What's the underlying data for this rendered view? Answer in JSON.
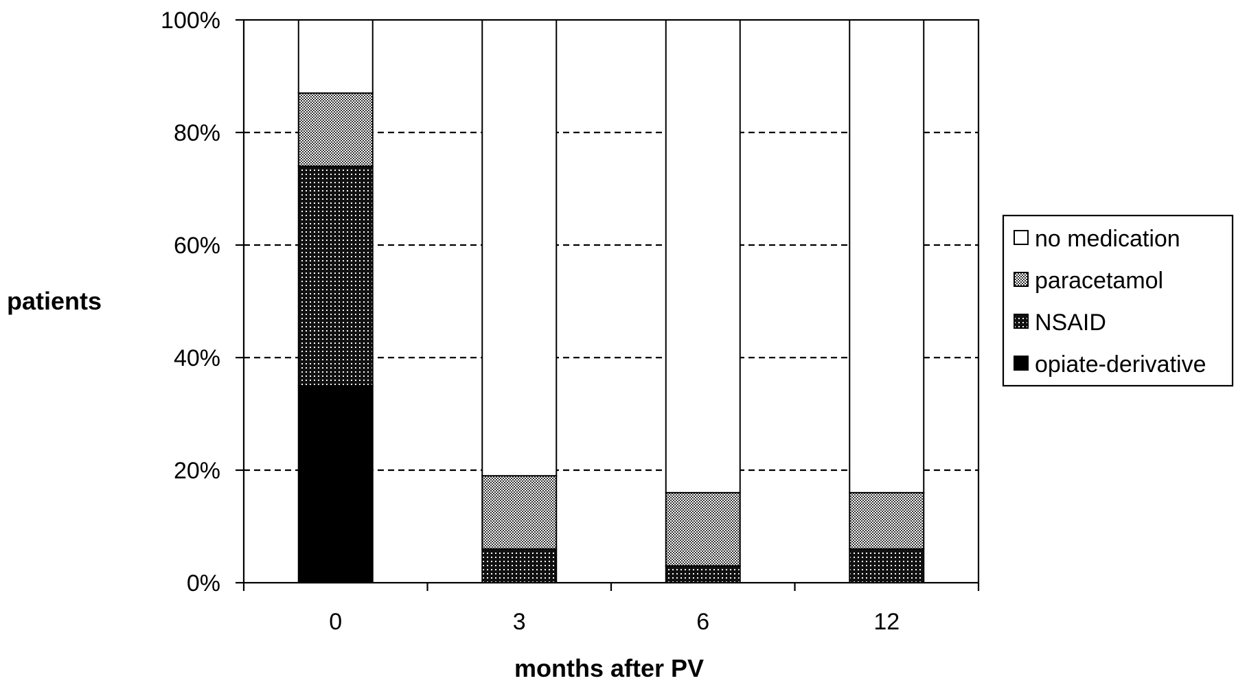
{
  "chart_data": {
    "type": "bar",
    "stacked": true,
    "percent_stacked": true,
    "xlabel": "months after PV",
    "ylabel": "patients",
    "categories": [
      "0",
      "3",
      "6",
      "12"
    ],
    "ylim": [
      0,
      100
    ],
    "y_ticks": [
      "0%",
      "20%",
      "40%",
      "60%",
      "80%",
      "100%"
    ],
    "grid": "horizontal dashed",
    "legend_position": "right",
    "series": [
      {
        "name": "opiate-derivative",
        "values": [
          35,
          0,
          0,
          0
        ],
        "pattern": "solid-black"
      },
      {
        "name": "NSAID",
        "values": [
          39,
          6,
          3,
          6
        ],
        "pattern": "dots-dark"
      },
      {
        "name": "paracetamol",
        "values": [
          13,
          13,
          13,
          10
        ],
        "pattern": "checker-gray"
      },
      {
        "name": "no medication",
        "values": [
          13,
          81,
          84,
          84
        ],
        "pattern": "white"
      }
    ],
    "legend_order": [
      "no medication",
      "paracetamol",
      "NSAID",
      "opiate-derivative"
    ]
  }
}
